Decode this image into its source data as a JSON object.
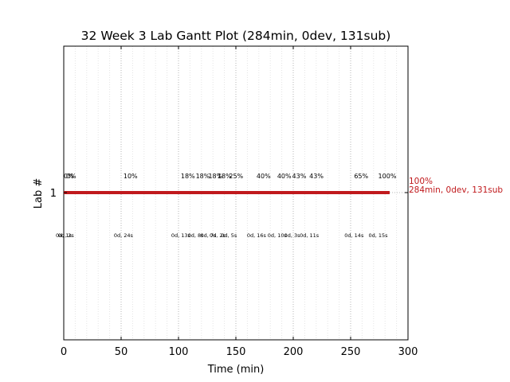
{
  "chart_data": {
    "type": "gantt",
    "title": "32 Week 3 Lab Gantt Plot (284min, 0dev, 131sub)",
    "xlabel": "Time (min)",
    "ylabel": "Lab #",
    "xlim": [
      0,
      300
    ],
    "xticks": [
      "0",
      "50",
      "100",
      "150",
      "200",
      "250",
      "300"
    ],
    "yticks": [
      "1"
    ],
    "grid": "vertical dotted",
    "bars": [
      {
        "lab": "1",
        "start": 0,
        "end": 284,
        "color": "#c0191c"
      }
    ],
    "end_label": {
      "line1": "100%",
      "line2": "284min, 0dev, 131sub",
      "color": "#c0191c"
    },
    "checkpoints": [
      {
        "x": 0,
        "pct": "0%",
        "note": "0d, 1s"
      },
      {
        "x": 2,
        "pct": "0%",
        "note": "0d, 2s"
      },
      {
        "x": 52,
        "pct": "10%",
        "note": "0d, 24s"
      },
      {
        "x": 102,
        "pct": "18%",
        "note": "0d, 13s"
      },
      {
        "x": 115,
        "pct": "18%",
        "note": "0d, 8s"
      },
      {
        "x": 126,
        "pct": "18%",
        "note": "0d, 7s"
      },
      {
        "x": 134,
        "pct": "18%",
        "note": "0d, 2s"
      },
      {
        "x": 144,
        "pct": "25%",
        "note": "0d, 5s"
      },
      {
        "x": 168,
        "pct": "40%",
        "note": "0d, 16s"
      },
      {
        "x": 186,
        "pct": "40%",
        "note": "0d, 10s"
      },
      {
        "x": 199,
        "pct": "43%",
        "note": "0d, 3s"
      },
      {
        "x": 214,
        "pct": "43%",
        "note": "0d, 11s"
      },
      {
        "x": 253,
        "pct": "65%",
        "note": "0d, 14s"
      },
      {
        "x": 274,
        "pct": "100%",
        "note": "0d, 15s"
      }
    ]
  }
}
